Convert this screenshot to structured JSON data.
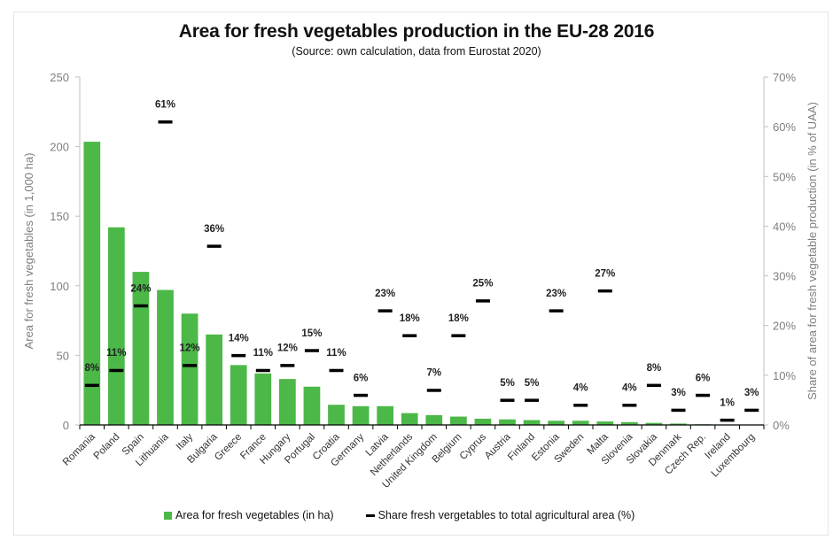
{
  "chart_data": {
    "type": "bar",
    "title": "Area for fresh vegetables production in the EU-28 2016",
    "subtitle": "(Source: own calculation, data from Eurostat 2020)",
    "xlabel": "",
    "ylabel": "Area for fresh vegetables (in 1,000 ha)",
    "y2label": "Share of area for fresh vegetable production (in % of UAA)",
    "ylim": [
      0,
      250
    ],
    "y2lim": [
      0,
      70
    ],
    "yticks": [
      0,
      50,
      100,
      150,
      200,
      250
    ],
    "y2ticks": [
      "0%",
      "10%",
      "20%",
      "30%",
      "40%",
      "50%",
      "60%",
      "70%"
    ],
    "grid": false,
    "legend_position": "bottom",
    "categories": [
      "Romania",
      "Poland",
      "Spain",
      "Lithuania",
      "Italy",
      "Bulgaria",
      "Greece",
      "France",
      "Hungary",
      "Portugal",
      "Croatia",
      "Germany",
      "Latvia",
      "Netherlands",
      "United Kingdom",
      "Belgium",
      "Cyprus",
      "Austria",
      "Finland",
      "Estonia",
      "Sweden",
      "Malta",
      "Slovenia",
      "Slovakia",
      "Denmark",
      "Czech Rep.",
      "Ireland",
      "Luxembourg"
    ],
    "series": [
      {
        "name": "Area for fresh vegetables (in ha)",
        "type": "bar",
        "axis": "left",
        "color": "#4cb848",
        "values": [
          203.5,
          142,
          110,
          97,
          80,
          65,
          43,
          37,
          33,
          27.5,
          14.5,
          13.5,
          13.5,
          8.5,
          7,
          6,
          4.5,
          4,
          3.5,
          3,
          3,
          2.5,
          2,
          1.5,
          1,
          0.5,
          0.3,
          0.2
        ]
      },
      {
        "name": "Share fresh vergetables to total agricultural area (%)",
        "type": "marker",
        "axis": "right",
        "color": "#000000",
        "values": [
          8,
          11,
          24,
          61,
          12,
          36,
          14,
          11,
          12,
          15,
          11,
          6,
          23,
          18,
          7,
          18,
          25,
          5,
          5,
          23,
          4,
          27,
          4,
          8,
          3,
          6,
          1,
          3
        ],
        "labels": [
          "8%",
          "11%",
          "24%",
          "61%",
          "12%",
          "36%",
          "14%",
          "11%",
          "12%",
          "15%",
          "11%",
          "6%",
          "23%",
          "18%",
          "7%",
          "18%",
          "25%",
          "5%",
          "5%",
          "23%",
          "4%",
          "27%",
          "4%",
          "8%",
          "3%",
          "6%",
          "1%",
          "3%"
        ]
      }
    ]
  },
  "legend": {
    "bar_label": "Area for fresh vegetables (in ha)",
    "line_label": "Share fresh vergetables to total agricultural area (%)"
  }
}
